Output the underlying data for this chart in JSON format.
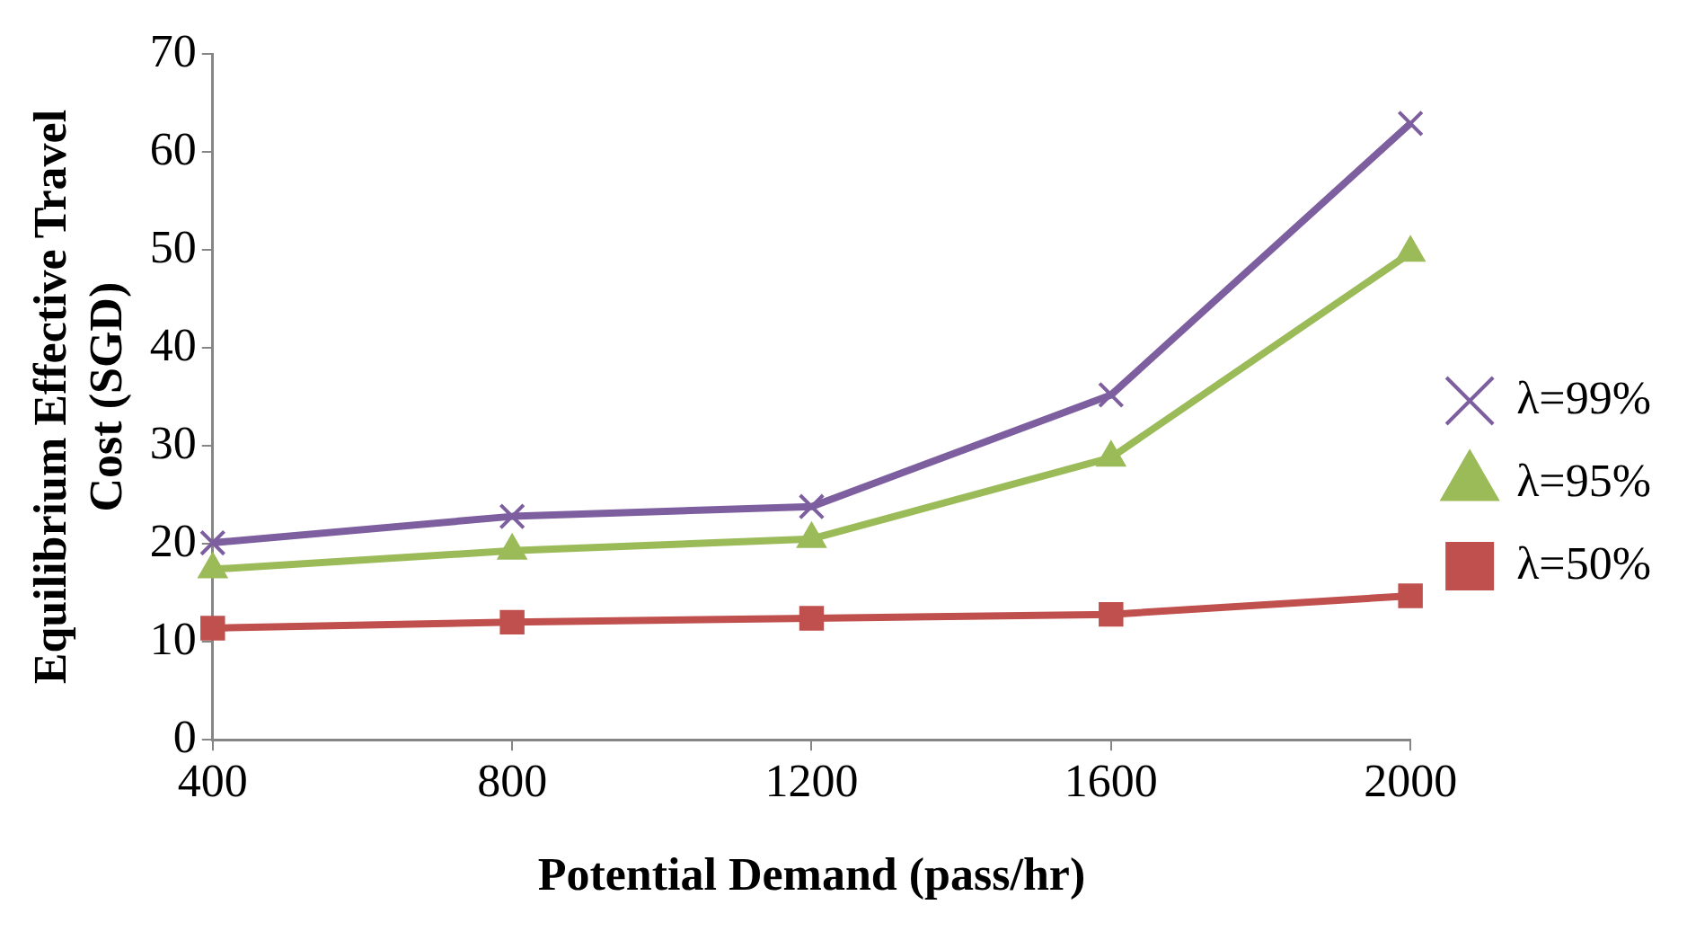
{
  "chart_data": {
    "type": "line",
    "xlabel": "Potential Demand (pass/hr)",
    "ylabel": "Equilibrium Effective Travel Cost (SGD)",
    "categories": [
      "400",
      "800",
      "1200",
      "1600",
      "2000"
    ],
    "series": [
      {
        "name": "λ=99%",
        "color": "#7d5fa0",
        "marker": "cross",
        "values": [
          20.1,
          22.8,
          23.8,
          35.2,
          62.9
        ]
      },
      {
        "name": "λ=95%",
        "color": "#9bbb59",
        "marker": "triangle",
        "values": [
          17.4,
          19.3,
          20.5,
          28.8,
          49.7
        ]
      },
      {
        "name": "λ=50%",
        "color": "#c0504d",
        "marker": "square",
        "values": [
          11.4,
          12,
          12.4,
          12.8,
          14.7
        ]
      }
    ],
    "ylim": [
      0,
      70
    ],
    "yticks": [
      0,
      10,
      20,
      30,
      40,
      50,
      60,
      70
    ],
    "grid": false,
    "legend": "right",
    "line_style": "solid"
  }
}
